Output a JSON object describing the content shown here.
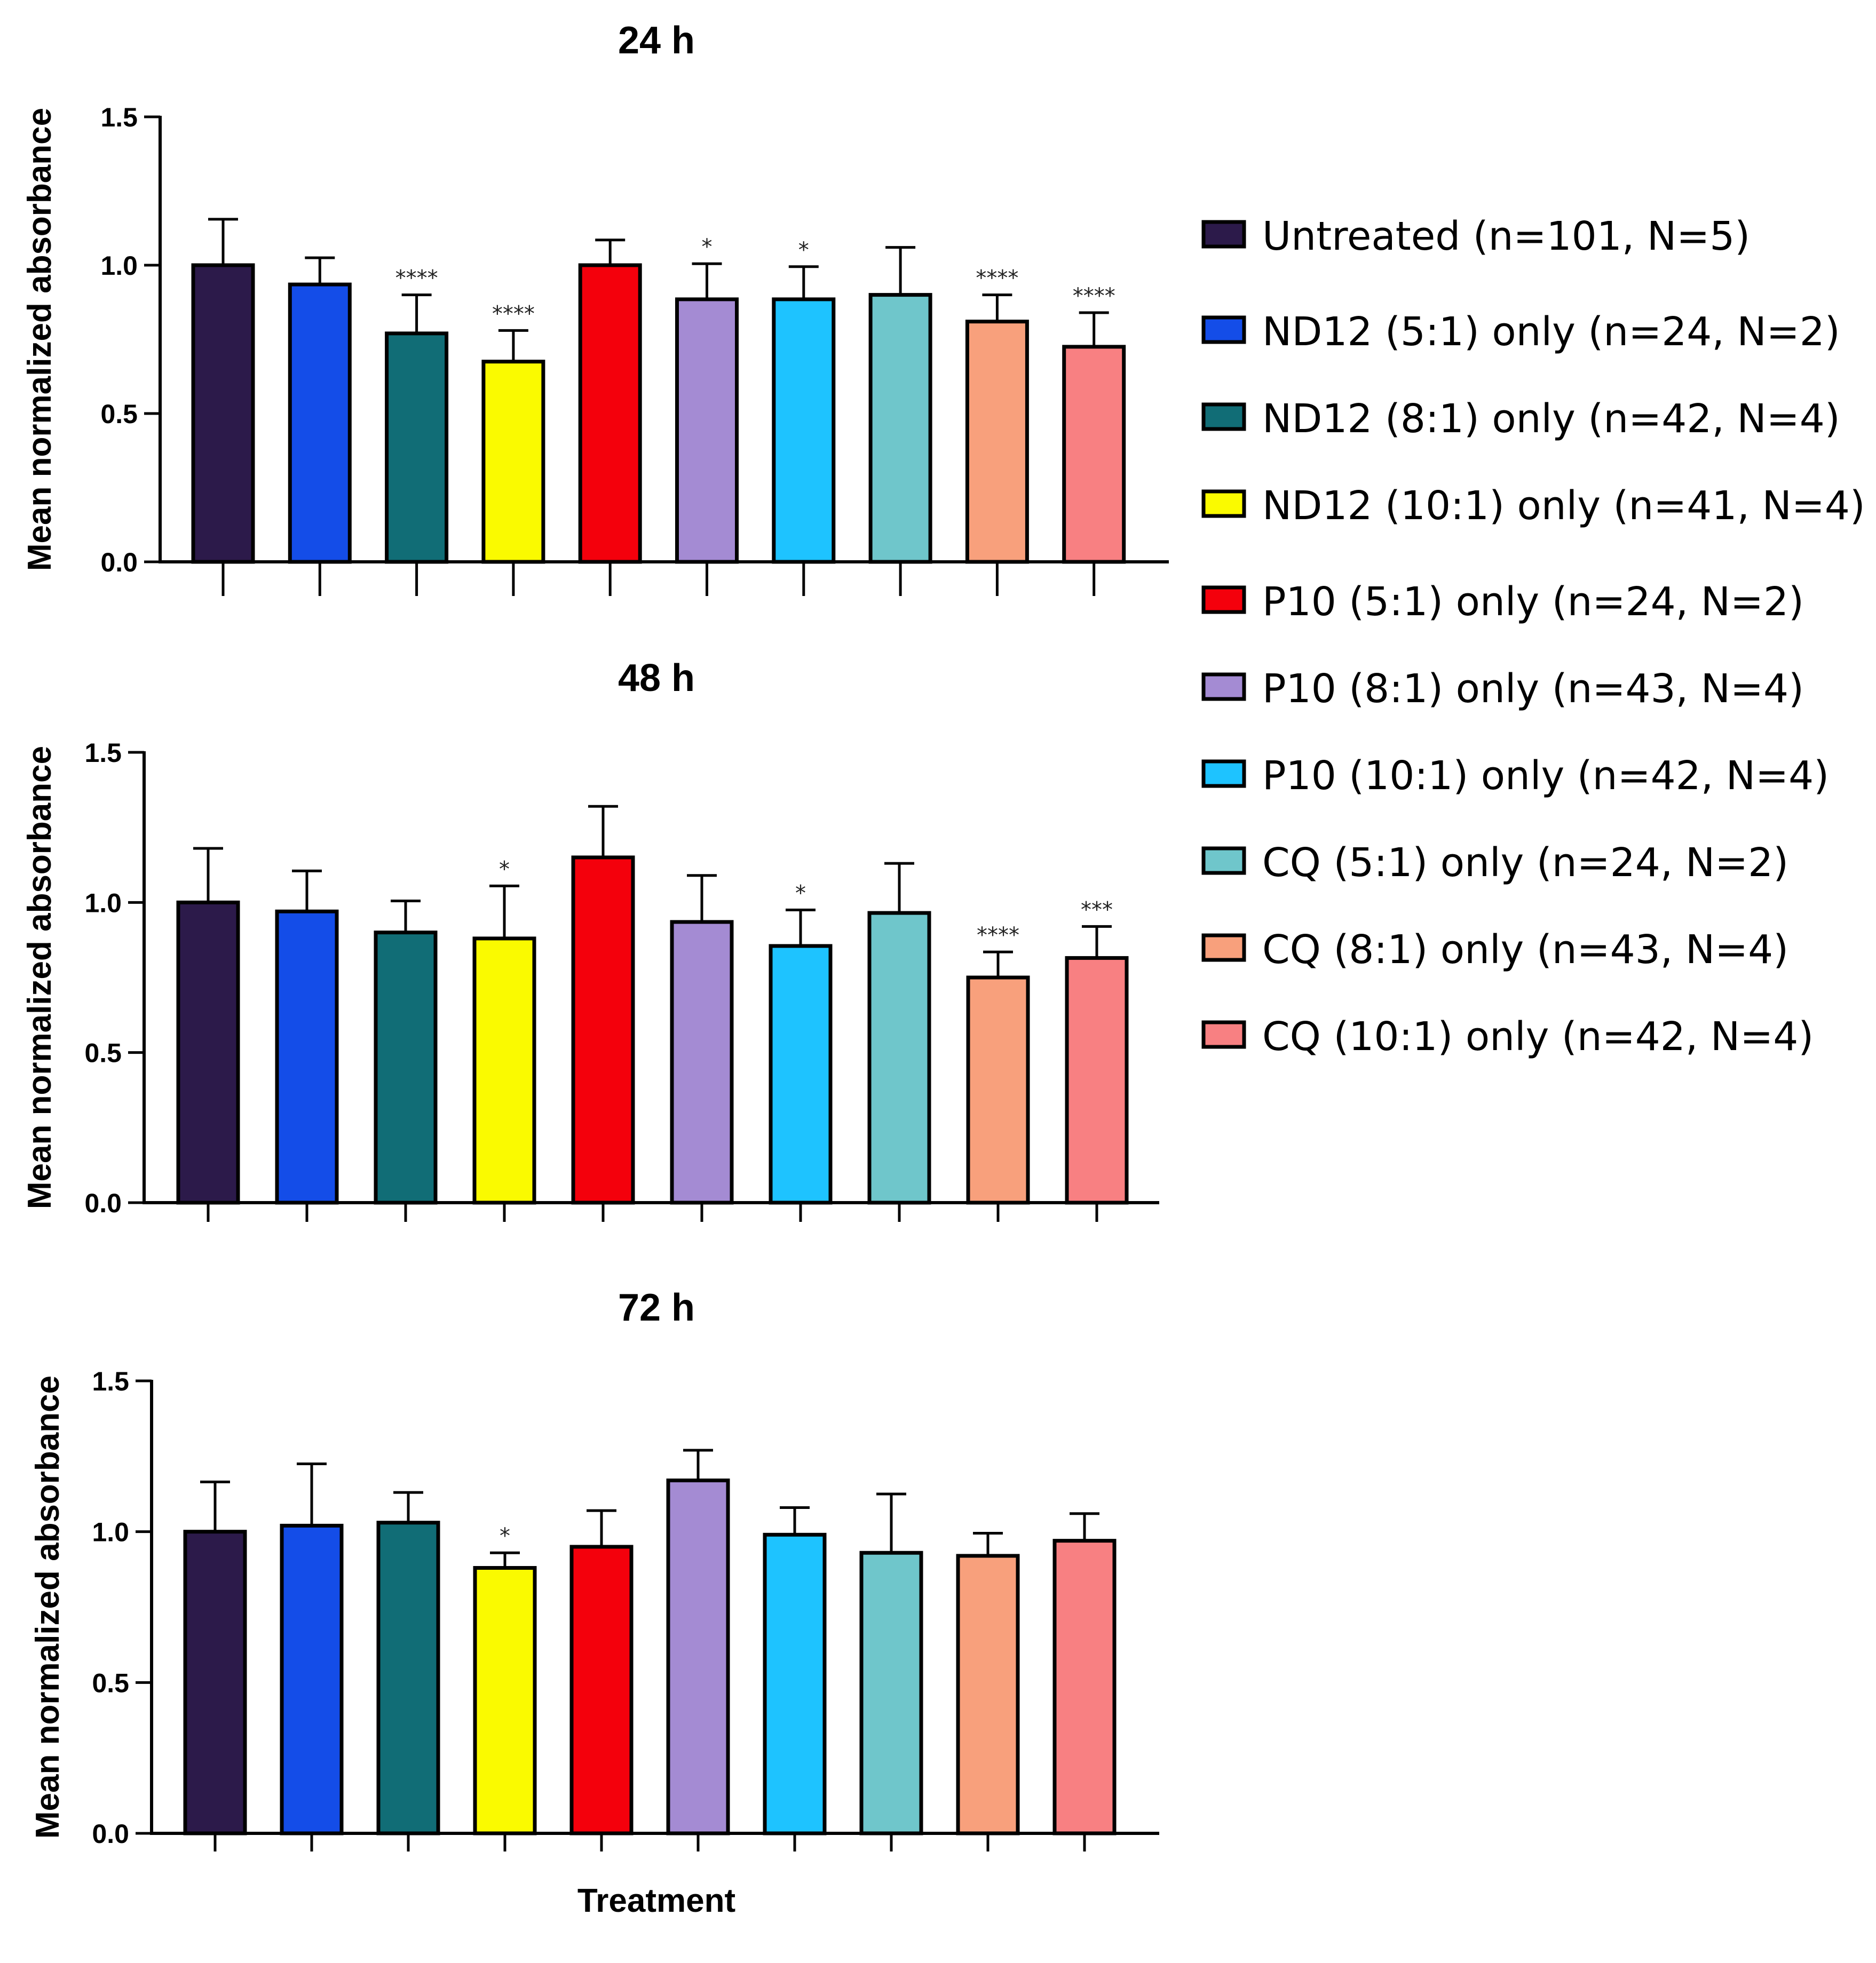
{
  "chart_data": {
    "type": "bar",
    "xlabel": "Treatment",
    "ylabel": "Mean normalized absorbance",
    "ylim": [
      0,
      1.5
    ],
    "yticks": [
      "0.0",
      "0.5",
      "1.0",
      "1.5"
    ],
    "legend": {
      "position": "right",
      "entries": [
        {
          "name": "Untreated (n=101, N=5)",
          "color": "#2c1a4a"
        },
        {
          "name": "ND12 (5:1) only (n=24, N=2)",
          "color": "#144de8"
        },
        {
          "name": "ND12 (8:1) only (n=42, N=4)",
          "color": "#116d76"
        },
        {
          "name": "ND12 (10:1) only (n=41, N=4)",
          "color": "#fafa00"
        },
        {
          "name": "P10 (5:1) only (n=24, N=2)",
          "color": "#f4000c"
        },
        {
          "name": "P10 (8:1) only (n=43, N=4)",
          "color": "#a48bd3"
        },
        {
          "name": "P10 (10:1) only (n=42, N=4)",
          "color": "#1ec3ff"
        },
        {
          "name": "CQ (5:1) only (n=24, N=2)",
          "color": "#6fc6cb"
        },
        {
          "name": "CQ (8:1) only (n=43, N=4)",
          "color": "#f8a07c"
        },
        {
          "name": "CQ (10:1) only (n=42, N=4)",
          "color": "#f88082"
        }
      ]
    },
    "panels": [
      {
        "title": "24 h",
        "values": [
          1.0,
          0.935,
          0.77,
          0.675,
          1.0,
          0.885,
          0.885,
          0.9,
          0.81,
          0.725
        ],
        "errors": [
          0.155,
          0.09,
          0.13,
          0.105,
          0.085,
          0.12,
          0.11,
          0.16,
          0.09,
          0.115
        ],
        "significance": [
          "",
          "",
          "****",
          "****",
          "",
          "*",
          "*",
          "",
          "****",
          "****"
        ]
      },
      {
        "title": "48 h",
        "values": [
          1.0,
          0.97,
          0.9,
          0.88,
          1.15,
          0.935,
          0.855,
          0.965,
          0.75,
          0.815
        ],
        "errors": [
          0.18,
          0.135,
          0.105,
          0.175,
          0.17,
          0.155,
          0.12,
          0.165,
          0.085,
          0.105
        ],
        "significance": [
          "",
          "",
          "",
          "*",
          "",
          "",
          "*",
          "",
          "****",
          "***"
        ]
      },
      {
        "title": "72 h",
        "values": [
          1.0,
          1.02,
          1.03,
          0.88,
          0.95,
          1.17,
          0.99,
          0.93,
          0.92,
          0.97
        ],
        "errors": [
          0.165,
          0.205,
          0.1,
          0.05,
          0.12,
          0.1,
          0.09,
          0.195,
          0.075,
          0.09
        ],
        "significance": [
          "",
          "",
          "",
          "*",
          "",
          "",
          "",
          "",
          "",
          ""
        ]
      }
    ]
  }
}
